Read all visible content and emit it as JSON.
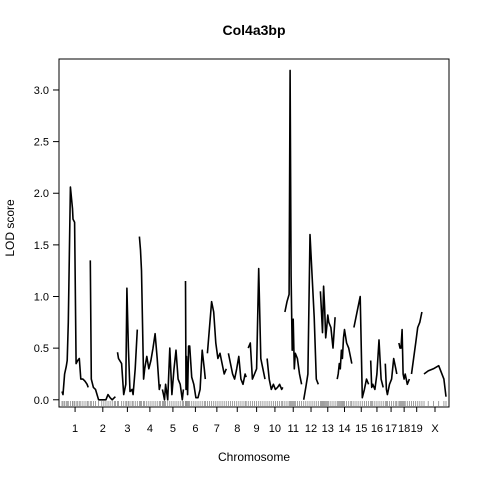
{
  "chart_data": {
    "type": "line",
    "title": "Col4a3bp",
    "xlabel": "Chromosome",
    "ylabel": "LOD score",
    "ylim": [
      -0.07,
      3.3
    ],
    "yticks": [
      0.0,
      0.5,
      1.0,
      1.5,
      2.0,
      2.5,
      3.0
    ],
    "ytick_labels": [
      "0.0",
      "0.5",
      "1.0",
      "1.5",
      "2.0",
      "2.5",
      "3.0"
    ],
    "chromosomes": [
      {
        "label": "1",
        "start": 0,
        "length": 50
      },
      {
        "label": "2",
        "start": 54,
        "length": 48
      },
      {
        "label": "3",
        "start": 106,
        "length": 38
      },
      {
        "label": "4",
        "start": 148,
        "length": 40
      },
      {
        "label": "5",
        "start": 192,
        "length": 40
      },
      {
        "label": "6",
        "start": 236,
        "length": 38
      },
      {
        "label": "7",
        "start": 278,
        "length": 36
      },
      {
        "label": "8",
        "start": 318,
        "length": 34
      },
      {
        "label": "9",
        "start": 356,
        "length": 32
      },
      {
        "label": "10",
        "start": 392,
        "length": 30
      },
      {
        "label": "11",
        "start": 426,
        "length": 32
      },
      {
        "label": "12",
        "start": 462,
        "length": 28
      },
      {
        "label": "13",
        "start": 494,
        "length": 28
      },
      {
        "label": "14",
        "start": 526,
        "length": 28
      },
      {
        "label": "15",
        "start": 558,
        "length": 28
      },
      {
        "label": "16",
        "start": 590,
        "length": 24
      },
      {
        "label": "17",
        "start": 618,
        "length": 22
      },
      {
        "label": "18",
        "start": 644,
        "length": 20
      },
      {
        "label": "19",
        "start": 668,
        "length": 20
      },
      {
        "label": "X",
        "start": 692,
        "length": 42
      }
    ],
    "series": [
      {
        "color": "#000000",
        "segments": [
          {
            "x": [
              0,
              2,
              5,
              8,
              10,
              12,
              16,
              20,
              21,
              24,
              27,
              30,
              33,
              36,
              40,
              44,
              48,
              50
            ],
            "y": [
              0.08,
              0.05,
              0.25,
              0.32,
              0.38,
              0.75,
              2.06,
              1.85,
              1.75,
              1.72,
              0.35,
              0.38,
              0.4,
              0.2,
              0.2,
              0.18,
              0.15,
              0.12
            ]
          },
          {
            "x": [
              54,
              56,
              60,
              64,
              70,
              76,
              80,
              84,
              88,
              92,
              96,
              100,
              102
            ],
            "y": [
              1.35,
              0.2,
              0.12,
              0.1,
              0.0,
              0.0,
              0.0,
              0.0,
              0.05,
              0.02,
              0.0,
              0.02,
              0.03
            ]
          },
          {
            "x": [
              106,
              108,
              114,
              118,
              122,
              124,
              127,
              130,
              134,
              136,
              140,
              144
            ],
            "y": [
              0.46,
              0.4,
              0.35,
              0.05,
              0.15,
              1.08,
              0.5,
              0.08,
              0.1,
              0.05,
              0.3,
              0.68
            ]
          },
          {
            "x": [
              148,
              150,
              152,
              156,
              158,
              162,
              166,
              170,
              174,
              178,
              182,
              186,
              188
            ],
            "y": [
              1.58,
              1.45,
              1.25,
              0.2,
              0.3,
              0.42,
              0.3,
              0.38,
              0.5,
              0.64,
              0.4,
              0.1,
              0.15
            ]
          },
          {
            "x": [
              192,
              194,
              196,
              198,
              202,
              206,
              210,
              214,
              218,
              222,
              226,
              230,
              232
            ],
            "y": [
              0.1,
              0.05,
              0.0,
              0.15,
              0.0,
              0.5,
              0.05,
              0.3,
              0.48,
              0.2,
              0.15,
              0.0,
              0.1
            ]
          },
          {
            "x": [
              236,
              237,
              238,
              240,
              242,
              244,
              248,
              252,
              256,
              260,
              264,
              268,
              272,
              274
            ],
            "y": [
              1.15,
              0.1,
              0.42,
              0.05,
              0.52,
              0.52,
              0.22,
              0.15,
              0.02,
              0.02,
              0.1,
              0.48,
              0.3,
              0.2
            ]
          },
          {
            "x": [
              278,
              282,
              286,
              290,
              294,
              298,
              302,
              306,
              310,
              314
            ],
            "y": [
              0.45,
              0.7,
              0.95,
              0.85,
              0.55,
              0.4,
              0.45,
              0.35,
              0.25,
              0.3
            ]
          },
          {
            "x": [
              318,
              322,
              326,
              330,
              334,
              338,
              342,
              346,
              350,
              352
            ],
            "y": [
              0.45,
              0.35,
              0.25,
              0.2,
              0.3,
              0.42,
              0.2,
              0.15,
              0.25,
              0.22
            ]
          },
          {
            "x": [
              356,
              360,
              364,
              368,
              372,
              376,
              380,
              384,
              388
            ],
            "y": [
              0.5,
              0.55,
              0.2,
              0.25,
              0.3,
              1.27,
              0.4,
              0.3,
              0.2
            ]
          },
          {
            "x": [
              392,
              396,
              400,
              404,
              408,
              412,
              416,
              420,
              422
            ],
            "y": [
              0.4,
              0.2,
              0.1,
              0.15,
              0.1,
              0.12,
              0.15,
              0.1,
              0.12
            ]
          },
          {
            "x": [
              426,
              430,
              434,
              436,
              438,
              440,
              442,
              444,
              446,
              450,
              454,
              458
            ],
            "y": [
              0.85,
              0.95,
              1.02,
              3.19,
              1.2,
              0.48,
              0.78,
              0.3,
              0.45,
              0.4,
              0.25,
              0.15
            ]
          },
          {
            "x": [
              462,
              466,
              470,
              474,
              478,
              482,
              486,
              490
            ],
            "y": [
              0.0,
              0.12,
              0.25,
              1.6,
              1.2,
              0.8,
              0.2,
              0.15
            ]
          },
          {
            "x": [
              494,
              496,
              498,
              500,
              502,
              504,
              506,
              508,
              510,
              514,
              518,
              522
            ],
            "y": [
              1.05,
              0.85,
              0.65,
              1.1,
              0.9,
              0.6,
              0.7,
              0.82,
              0.75,
              0.7,
              0.5,
              0.8
            ]
          },
          {
            "x": [
              526,
              528,
              530,
              532,
              534,
              536,
              538,
              540,
              544,
              548,
              552,
              554
            ],
            "y": [
              0.2,
              0.25,
              0.35,
              0.3,
              0.48,
              0.4,
              0.6,
              0.68,
              0.55,
              0.5,
              0.4,
              0.35
            ]
          },
          {
            "x": [
              558,
              562,
              566,
              570,
              574,
              578,
              582,
              586
            ],
            "y": [
              0.7,
              0.8,
              0.9,
              1.0,
              0.02,
              0.1,
              0.2,
              0.15
            ]
          },
          {
            "x": [
              590,
              592,
              594,
              598,
              602,
              606,
              610,
              614
            ],
            "y": [
              0.38,
              0.12,
              0.15,
              0.1,
              0.25,
              0.58,
              0.2,
              0.12
            ]
          },
          {
            "x": [
              618,
              620,
              622,
              626,
              630,
              634,
              638,
              640
            ],
            "y": [
              0.35,
              0.1,
              0.05,
              0.15,
              0.2,
              0.4,
              0.3,
              0.25
            ]
          },
          {
            "x": [
              644,
              646,
              648,
              650,
              652,
              654,
              656,
              660,
              664
            ],
            "y": [
              0.55,
              0.5,
              0.5,
              0.68,
              0.25,
              0.2,
              0.25,
              0.15,
              0.2
            ]
          },
          {
            "x": [
              668,
              672,
              676,
              680,
              684,
              688
            ],
            "y": [
              0.25,
              0.4,
              0.55,
              0.7,
              0.75,
              0.85
            ]
          },
          {
            "x": [
              692,
              700,
              710,
              720,
              730,
              734
            ],
            "y": [
              0.25,
              0.28,
              0.3,
              0.33,
              0.2,
              0.03
            ]
          }
        ]
      }
    ]
  }
}
